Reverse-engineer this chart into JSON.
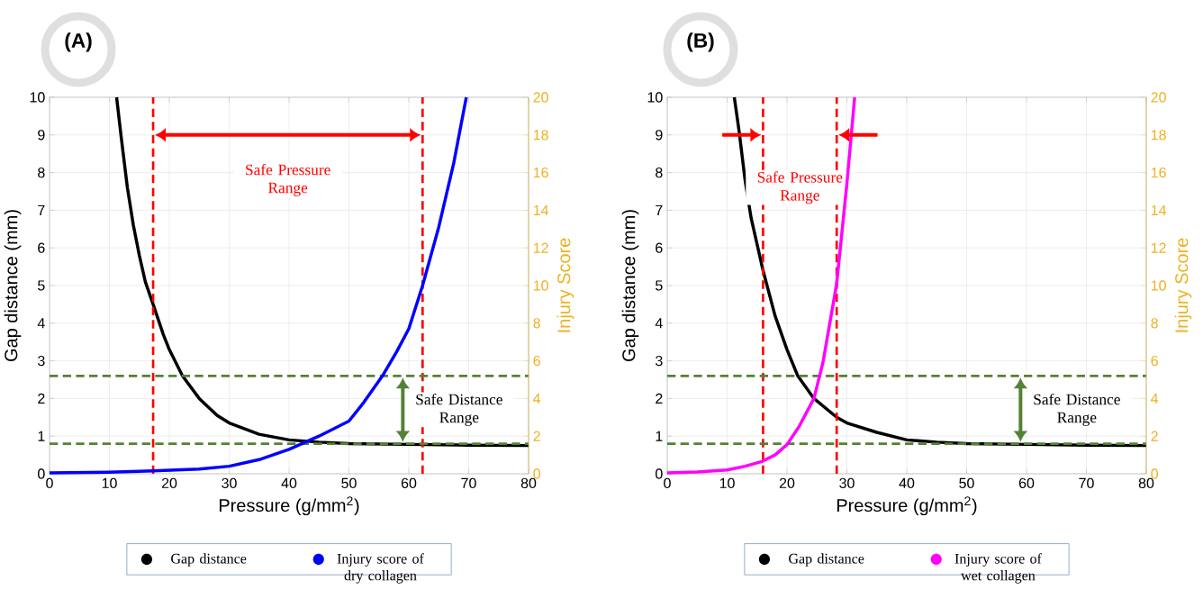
{
  "chart_data": [
    {
      "type": "line",
      "title": "(A)",
      "xlabel": "Pressure (g/mm$^{2}$)",
      "ylabel": "Gap distance (mm)",
      "y2label": "Injury Score",
      "xlim": [
        0,
        80
      ],
      "xticks": [
        0,
        10,
        20,
        30,
        40,
        50,
        60,
        70,
        80
      ],
      "ylim": [
        0,
        10
      ],
      "yticks": [
        0,
        1,
        2,
        3,
        4,
        5,
        6,
        7,
        8,
        9,
        10
      ],
      "y2lim": [
        0,
        20
      ],
      "y2ticks": [
        0,
        2,
        4,
        6,
        8,
        10,
        12,
        14,
        16,
        18,
        20
      ],
      "grid": true,
      "legend": "bottom",
      "series": [
        {
          "name": "Gap distance",
          "color": "#000000",
          "x": [
            11.2,
            12,
            13,
            14,
            15,
            16,
            17.3,
            19,
            20,
            22.2,
            25,
            28,
            30,
            35,
            40,
            45,
            50,
            60,
            70,
            80
          ],
          "values": [
            10,
            8.9,
            7.6,
            6.6,
            5.8,
            5.1,
            4.5,
            3.7,
            3.3,
            2.6,
            2.0,
            1.55,
            1.35,
            1.05,
            0.9,
            0.84,
            0.8,
            0.78,
            0.76,
            0.75
          ]
        },
        {
          "name": "Injury score of dry collagen",
          "color": "#0000ff",
          "axis": "y2",
          "x": [
            0,
            10,
            17.3,
            25,
            30,
            35,
            40,
            45,
            50,
            52.5,
            55.6,
            58,
            60,
            62.3,
            65,
            67.5,
            69.6
          ],
          "values": [
            0.05,
            0.08,
            0.15,
            0.25,
            0.4,
            0.75,
            1.3,
            2.0,
            2.8,
            3.8,
            5.2,
            6.5,
            7.7,
            10,
            13.1,
            16.5,
            20
          ]
        }
      ],
      "ref_lines": [
        {
          "axis": "x",
          "value": 17.3,
          "color": "#ff0000",
          "line_style": "dashed"
        },
        {
          "axis": "x",
          "value": 62.3,
          "color": "#ff0000",
          "line_style": "dashed"
        },
        {
          "axis": "y",
          "value": 2.6,
          "color": "#548235",
          "line_style": "dashed"
        },
        {
          "axis": "y",
          "value": 0.8,
          "color": "#548235",
          "line_style": "dashed"
        }
      ],
      "annotations": [
        "Safe Pressure Range",
        "Safe Distance Range"
      ]
    },
    {
      "type": "line",
      "title": "(B)",
      "xlabel": "Pressure (g/mm$^{2}$)",
      "ylabel": "Gap distance (mm)",
      "y2label": "Injury Score",
      "xlim": [
        0,
        80
      ],
      "xticks": [
        0,
        10,
        20,
        30,
        40,
        50,
        60,
        70,
        80
      ],
      "ylim": [
        0,
        10
      ],
      "yticks": [
        0,
        1,
        2,
        3,
        4,
        5,
        6,
        7,
        8,
        9,
        10
      ],
      "y2lim": [
        0,
        20
      ],
      "y2ticks": [
        0,
        2,
        4,
        6,
        8,
        10,
        12,
        14,
        16,
        18,
        20
      ],
      "grid": true,
      "legend": "bottom",
      "series": [
        {
          "name": "Gap distance",
          "color": "#000000",
          "x": [
            11.2,
            12,
            13,
            14,
            16,
            18,
            20,
            21.8,
            24.5,
            28.3,
            30,
            35,
            40,
            45,
            50,
            60,
            70,
            80
          ],
          "values": [
            10,
            9.1,
            7.8,
            6.8,
            5.4,
            4.2,
            3.3,
            2.6,
            2.0,
            1.5,
            1.35,
            1.1,
            0.9,
            0.84,
            0.8,
            0.78,
            0.76,
            0.75
          ]
        },
        {
          "name": "Injury score of wet collagen",
          "color": "#ff00ff",
          "axis": "y2",
          "x": [
            0,
            5,
            10,
            13,
            15.8,
            18,
            20,
            22,
            24.5,
            26,
            28.3,
            30,
            31.3
          ],
          "values": [
            0.05,
            0.1,
            0.2,
            0.4,
            0.65,
            1.0,
            1.55,
            2.5,
            4.0,
            5.9,
            10.1,
            15.4,
            20
          ]
        }
      ],
      "ref_lines": [
        {
          "axis": "x",
          "value": 16.0,
          "color": "#ff0000",
          "line_style": "dashed"
        },
        {
          "axis": "x",
          "value": 28.3,
          "color": "#ff0000",
          "line_style": "dashed"
        },
        {
          "axis": "y",
          "value": 2.6,
          "color": "#548235",
          "line_style": "dashed"
        },
        {
          "axis": "y",
          "value": 0.8,
          "color": "#548235",
          "line_style": "dashed"
        }
      ],
      "annotations": [
        "Safe Pressure Range",
        "Safe Distance Range"
      ]
    }
  ]
}
